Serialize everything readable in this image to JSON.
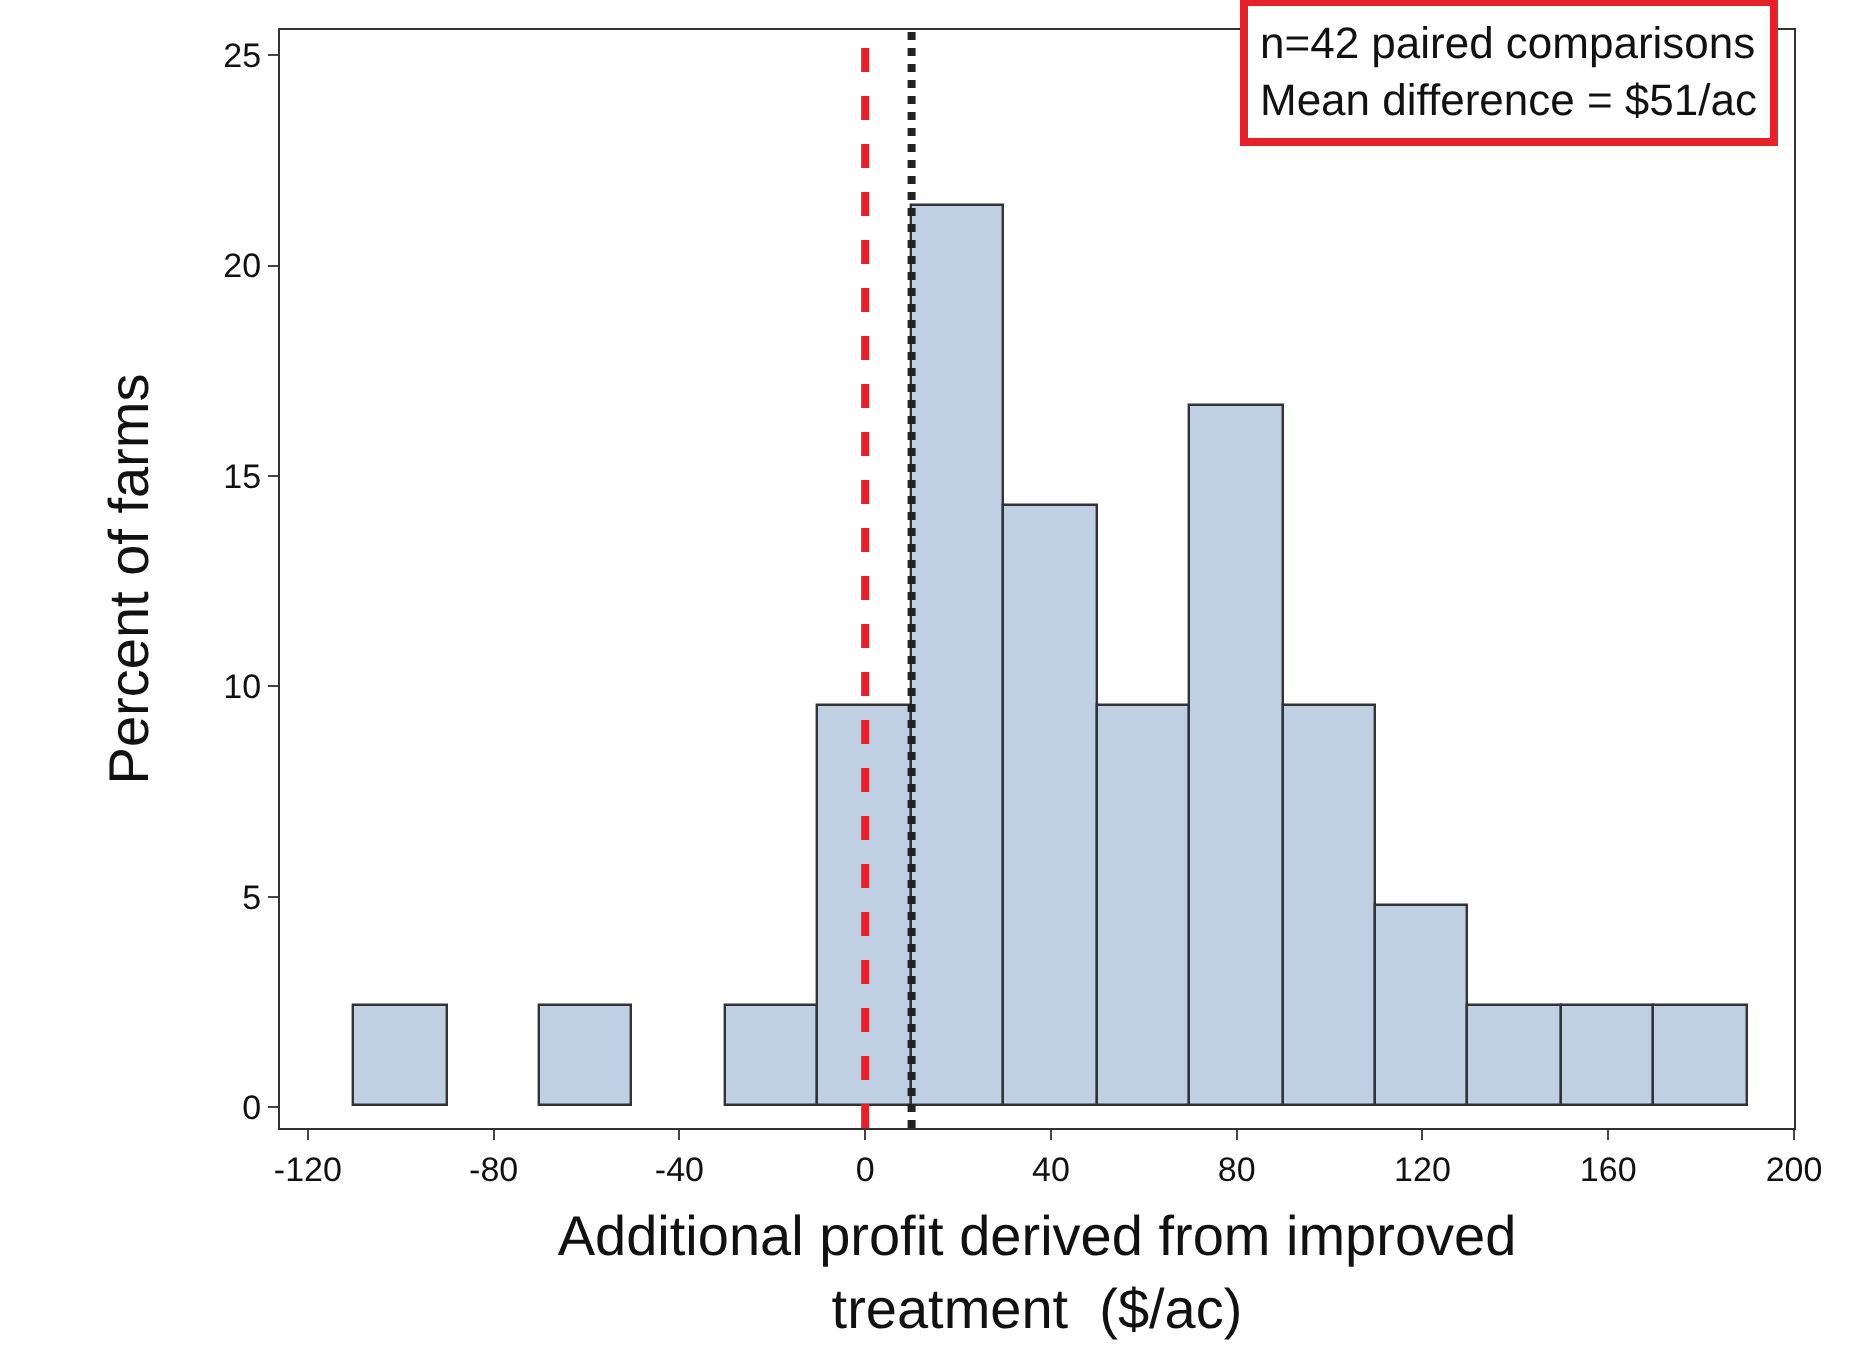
{
  "chart_data": {
    "type": "histogram",
    "xlabel": "Additional profit derived from improved\ntreatment  ($/ac)",
    "ylabel": "Percent of farms",
    "bins": [
      -110,
      -90,
      -70,
      -50,
      -30,
      -10,
      10,
      30,
      50,
      70,
      90,
      110,
      130,
      150,
      170,
      190
    ],
    "values": [
      2.38,
      0,
      2.38,
      0,
      2.38,
      9.52,
      21.43,
      14.29,
      9.52,
      16.67,
      9.52,
      4.76,
      2.38,
      2.38,
      2.38
    ],
    "color": "#bfd0e4",
    "xlim": [
      -126,
      200
    ],
    "xticks": [
      -120,
      -80,
      -40,
      0,
      40,
      80,
      120,
      160,
      200
    ],
    "ylim": [
      -0.5,
      25.6
    ],
    "yticks": [
      0,
      5,
      10,
      15,
      20,
      25
    ],
    "grid": false,
    "ref_lines": [
      {
        "axis": "x",
        "value": 0,
        "color": "#e8202a",
        "line_style": "dashed"
      },
      {
        "axis": "x",
        "value": 10,
        "color": "#222222",
        "line_style": "dotted"
      }
    ],
    "annotations": [
      "n=42 paired comparisons\nMean difference = $51/ac"
    ]
  }
}
